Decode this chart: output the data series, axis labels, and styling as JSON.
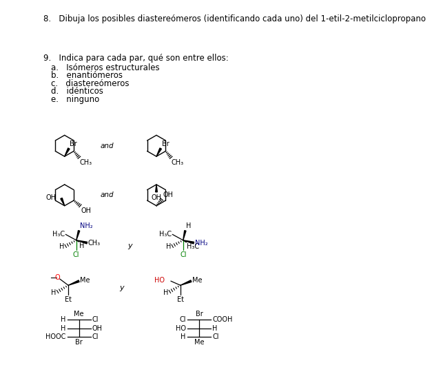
{
  "bg_color": "#ffffff",
  "text_color": "#000000",
  "q8_text": "8.   Dibuja los posibles diastereómeros (identificando cada uno) del 1-etil-2-metilciclopropano",
  "q9_text": "9.   Indica para cada par, qué son entre ellos:",
  "list_items": [
    "a.   Isómeros estructurales",
    "b.   enantiómeros",
    "c.   diastereómeros",
    "d.   idénticos",
    "e.   ninguno"
  ]
}
